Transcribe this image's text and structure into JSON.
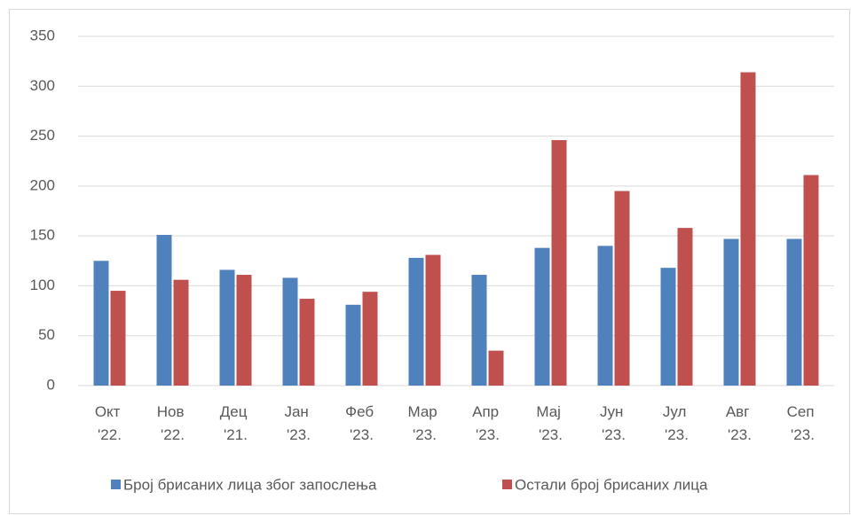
{
  "chart_data": {
    "type": "bar",
    "categories": [
      "Окт '22.",
      "Нов '22.",
      "Дец '21.",
      "Јан '23.",
      "Феб '23.",
      "Мар '23.",
      "Апр '23.",
      "Мај '23.",
      "Јун '23.",
      "Јул '23.",
      "Авг '23.",
      "Сеп '23."
    ],
    "series": [
      {
        "name": "Број брисаних лица због запослења",
        "color": "#4f81bd",
        "values": [
          125,
          151,
          116,
          108,
          81,
          128,
          111,
          138,
          140,
          118,
          147,
          147
        ]
      },
      {
        "name": "Остали број брисаних лица",
        "color": "#c0504d",
        "values": [
          95,
          106,
          111,
          87,
          94,
          131,
          35,
          246,
          195,
          158,
          314,
          211
        ]
      }
    ],
    "ylim": [
      0,
      350
    ],
    "yticks": [
      0,
      50,
      100,
      150,
      200,
      250,
      300,
      350
    ],
    "grid": true,
    "legend": "bottom"
  }
}
